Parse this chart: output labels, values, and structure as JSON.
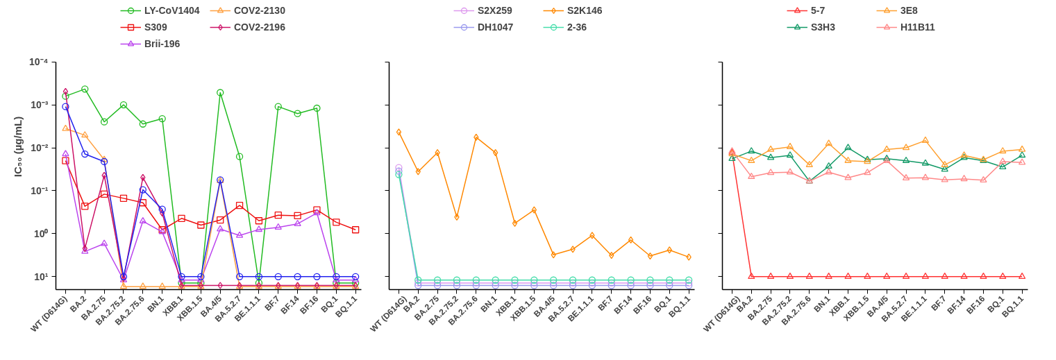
{
  "chart_data": [
    {
      "type": "line",
      "ylabel": "IC₅₀ (µg/mL)",
      "log": "y",
      "grid": false,
      "legend": "top",
      "ylim": [
        20,
        0.0001
      ],
      "yticks": [
        {
          "value": 0.0001,
          "label": "10⁻⁴"
        },
        {
          "value": 0.001,
          "label": "10⁻³"
        },
        {
          "value": 0.01,
          "label": "10⁻²"
        },
        {
          "value": 0.1,
          "label": "10⁻¹"
        },
        {
          "value": 1,
          "label": "10⁰"
        },
        {
          "value": 10,
          "label": "10¹"
        }
      ],
      "categories": [
        "WT (D614G)",
        "BA.2",
        "BA.2.75",
        "BA.2.75.2",
        "BA.2.75.6",
        "BN.1",
        "XBB.1",
        "XBB.1.5",
        "BA.4/5",
        "BA.5.2.7",
        "BE.1.1.1",
        "BF.7",
        "BF.14",
        "BF.16",
        "BQ.1",
        "BQ.1.1"
      ],
      "series": [
        {
          "name": "LY-CoV1404",
          "color": "#22bb22",
          "marker": "circle",
          "values": [
            0.00063,
            0.00043,
            0.0025,
            0.001,
            0.0028,
            0.0021,
            14,
            14,
            0.00052,
            0.016,
            14,
            0.0011,
            0.0016,
            0.0012,
            14,
            14
          ]
        },
        {
          "name": "S309",
          "color": "#ee1111",
          "marker": "square",
          "values": [
            0.02,
            0.23,
            0.12,
            0.15,
            0.19,
            0.81,
            0.44,
            0.63,
            0.48,
            0.22,
            0.5,
            0.37,
            0.38,
            0.28,
            0.54,
            0.81
          ]
        },
        {
          "name": "Brii-196",
          "color": "#bb44ee",
          "marker": "triangle",
          "values": [
            0.014,
            2.6,
            1.7,
            12,
            0.51,
            0.91,
            12,
            12,
            0.78,
            1.1,
            0.8,
            0.71,
            0.59,
            0.33,
            12,
            12
          ]
        },
        {
          "name": "COV2-2130",
          "color": "#ffa040",
          "marker": "triangle",
          "values": [
            0.0036,
            0.0051,
            0.019,
            17,
            17,
            17,
            17,
            17,
            0.059,
            17,
            17,
            17,
            17,
            17,
            17,
            17
          ]
        },
        {
          "name": "COV2-2196",
          "color": "#cc1166",
          "marker": "diamond",
          "values": [
            0.00049,
            2.2,
            0.044,
            11,
            0.049,
            0.33,
            16,
            16,
            16,
            16,
            16,
            16,
            16,
            16,
            16,
            16
          ]
        },
        {
          "color": "#2222ee",
          "marker": "circle",
          "values": [
            0.0011,
            0.014,
            0.021,
            10,
            0.095,
            0.27,
            10,
            10,
            0.056,
            10,
            10,
            10,
            10,
            10,
            10,
            10
          ]
        }
      ]
    },
    {
      "type": "line",
      "log": "y",
      "grid": false,
      "legend": "top",
      "tick_labels": "x",
      "ylim": [
        20,
        0.0001
      ],
      "yticks": [
        {
          "value": 0.0001,
          "label": null
        },
        {
          "value": 0.001,
          "label": null
        },
        {
          "value": 0.01,
          "label": null
        },
        {
          "value": 0.1,
          "label": null
        },
        {
          "value": 1,
          "label": null
        },
        {
          "value": 10,
          "label": null
        }
      ],
      "categories": [
        "WT (D614G)",
        "BA.2",
        "BA.2.75",
        "BA.2.75.2",
        "BA.2.75.6",
        "BN.1",
        "XBB.1",
        "XBB.1.5",
        "BA.4/5",
        "BA.5.2.7",
        "BE.1.1.1",
        "BF.7",
        "BF.14",
        "BF.16",
        "BQ.1",
        "BQ.1.1"
      ],
      "series": [
        {
          "name": "S2X259",
          "color": "#dd99ee",
          "marker": "circle",
          "values": [
            0.029,
            14,
            14,
            14,
            14,
            14,
            14,
            14,
            14,
            14,
            14,
            14,
            14,
            14,
            14,
            14
          ]
        },
        {
          "name": "DH1047",
          "color": "#9999ee",
          "marker": "circle",
          "values": [
            0.035,
            16,
            16,
            16,
            16,
            16,
            16,
            16,
            16,
            16,
            16,
            16,
            16,
            16,
            16,
            16
          ]
        },
        {
          "name": "S2K146",
          "color": "#ff8800",
          "marker": "diamond",
          "values": [
            0.0043,
            0.036,
            0.013,
            0.41,
            0.0057,
            0.013,
            0.57,
            0.28,
            3.1,
            2.3,
            1.1,
            3.2,
            1.4,
            3.3,
            2.4,
            3.5
          ]
        },
        {
          "name": "2-36",
          "color": "#44ddaa",
          "marker": "circle",
          "values": [
            0.042,
            12,
            12,
            12,
            12,
            12,
            12,
            12,
            12,
            12,
            12,
            12,
            12,
            12,
            12,
            12
          ]
        }
      ]
    },
    {
      "type": "line",
      "log": "y",
      "grid": false,
      "legend": "top",
      "tick_labels": "x",
      "ylim": [
        20,
        0.0001
      ],
      "yticks": [
        {
          "value": 0.0001,
          "label": null
        },
        {
          "value": 0.001,
          "label": null
        },
        {
          "value": 0.01,
          "label": null
        },
        {
          "value": 0.1,
          "label": null
        },
        {
          "value": 1,
          "label": null
        },
        {
          "value": 10,
          "label": null
        }
      ],
      "categories": [
        "WT (D614G)",
        "BA.2",
        "BA.2.75",
        "BA.2.75.2",
        "BA.2.75.6",
        "BN.1",
        "XBB.1",
        "XBB.1.5",
        "BA.4/5",
        "BA.5.2.7",
        "BE.1.1.1",
        "BF.7",
        "BF.14",
        "BF.16",
        "BQ.1",
        "BQ.1.1"
      ],
      "series": [
        {
          "name": "5-7",
          "color": "#ff3333",
          "marker": "triangle",
          "values": [
            0.013,
            10,
            10,
            10,
            10,
            10,
            10,
            10,
            10,
            10,
            10,
            10,
            10,
            10,
            10,
            10
          ]
        },
        {
          "name": "S3H3",
          "color": "#119966",
          "marker": "triangle",
          "values": [
            0.018,
            0.012,
            0.017,
            0.015,
            0.06,
            0.027,
            0.01,
            0.019,
            0.018,
            0.02,
            0.023,
            0.032,
            0.017,
            0.02,
            0.028,
            0.015
          ]
        },
        {
          "name": "3E8",
          "color": "#ffa030",
          "marker": "triangle",
          "values": [
            0.014,
            0.02,
            0.011,
            0.0095,
            0.025,
            0.008,
            0.02,
            0.021,
            0.011,
            0.01,
            0.0068,
            0.025,
            0.015,
            0.019,
            0.012,
            0.011
          ]
        },
        {
          "name": "H11B11",
          "color": "#ff8888",
          "marker": "triangle",
          "values": [
            0.012,
            0.047,
            0.038,
            0.037,
            0.06,
            0.037,
            0.05,
            0.038,
            0.02,
            0.051,
            0.05,
            0.056,
            0.053,
            0.057,
            0.021,
            0.022
          ]
        }
      ]
    }
  ]
}
